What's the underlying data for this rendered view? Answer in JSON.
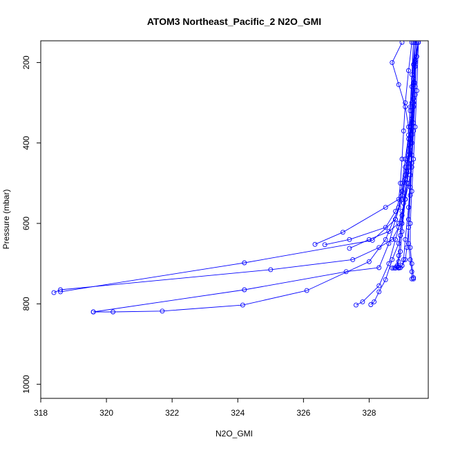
{
  "chart_data": {
    "type": "line",
    "title": "ATOM3 Northeast_Pacific_2 N2O_GMI",
    "xlabel": "N2O_GMI",
    "ylabel": "Pressure (mbar)",
    "xlim": [
      318.0,
      329.8
    ],
    "ylim": [
      1035,
      146
    ],
    "y_axis_reversed": true,
    "x_ticks": [
      318,
      320,
      322,
      324,
      326,
      328
    ],
    "y_ticks": [
      200,
      400,
      600,
      800,
      1000
    ],
    "grid": false,
    "legend": "none",
    "marker": "open-circle",
    "color": "#0000ff",
    "series": [
      {
        "x": [
          329.5,
          329.45,
          329.4,
          329.38,
          329.35,
          329.3,
          329.25,
          329.2,
          329.15,
          329.1,
          329.0,
          328.9,
          328.7,
          328.3,
          327.5,
          325.0,
          318.6,
          318.4
        ],
        "y": [
          150,
          185,
          210,
          250,
          300,
          350,
          400,
          450,
          500,
          540,
          580,
          610,
          640,
          660,
          690,
          715,
          765,
          772
        ]
      },
      {
        "x": [
          329.5,
          329.4,
          329.35,
          329.3,
          329.25,
          329.2,
          329.1,
          329.0,
          328.8,
          328.1,
          324.2,
          318.6
        ],
        "y": [
          150,
          195,
          250,
          310,
          360,
          420,
          480,
          530,
          590,
          642,
          698,
          770
        ]
      },
      {
        "x": [
          329.45,
          329.4,
          329.35,
          329.3,
          329.25,
          329.2,
          329.1,
          329.0,
          328.8,
          328.6,
          328.3,
          327.3,
          324.2,
          319.6
        ],
        "y": [
          150,
          200,
          255,
          310,
          370,
          430,
          490,
          540,
          590,
          650,
          710,
          720,
          765,
          820
        ]
      },
      {
        "x": [
          329.4,
          329.35,
          329.3,
          329.25,
          329.2,
          329.1,
          329.0,
          328.9,
          328.5,
          328.0,
          326.1,
          324.15,
          321.7,
          320.2,
          319.6
        ],
        "y": [
          150,
          205,
          260,
          320,
          380,
          440,
          500,
          560,
          640,
          695,
          767,
          803,
          818,
          820,
          820
        ]
      },
      {
        "x": [
          329.0,
          328.7,
          328.9,
          329.1,
          329.2,
          329.25,
          329.3,
          329.2,
          329.1,
          329.0,
          328.9,
          328.6,
          328.0,
          327.4
        ],
        "y": [
          150,
          200,
          255,
          310,
          360,
          410,
          460,
          500,
          540,
          570,
          600,
          620,
          640,
          662
        ]
      },
      {
        "x": [
          329.3,
          329.2,
          329.1,
          329.05,
          329.0,
          328.95,
          328.9,
          328.5,
          327.2,
          326.35
        ],
        "y": [
          150,
          220,
          300,
          370,
          440,
          500,
          540,
          560,
          622,
          652
        ]
      },
      {
        "x": [
          329.35,
          329.3,
          329.25,
          329.2,
          329.1,
          329.0,
          328.8,
          328.5,
          327.4,
          326.65
        ],
        "y": [
          150,
          230,
          310,
          390,
          460,
          520,
          570,
          610,
          640,
          653
        ]
      },
      {
        "x": [
          329.4,
          329.35,
          329.3,
          329.25,
          329.2,
          329.1,
          329.0,
          328.9,
          328.7,
          328.5,
          328.3,
          328.15,
          328.05
        ],
        "y": [
          150,
          240,
          320,
          400,
          470,
          540,
          600,
          650,
          690,
          740,
          770,
          795,
          802
        ]
      },
      {
        "x": [
          329.4,
          329.35,
          329.3,
          329.25,
          329.15,
          329.0,
          328.8,
          328.6,
          328.3,
          327.8,
          327.6
        ],
        "y": [
          150,
          250,
          340,
          420,
          500,
          580,
          640,
          700,
          755,
          795,
          803
        ]
      },
      {
        "x": [
          329.45,
          329.4,
          329.35,
          329.3,
          329.25,
          329.2,
          329.2,
          329.25,
          329.3,
          329.3
        ],
        "y": [
          150,
          260,
          350,
          430,
          510,
          590,
          650,
          690,
          720,
          738
        ]
      },
      {
        "x": [
          329.5,
          329.45,
          329.4,
          329.35,
          329.3,
          329.25,
          329.25,
          329.3,
          329.35,
          329.35
        ],
        "y": [
          150,
          270,
          360,
          440,
          520,
          600,
          660,
          700,
          735,
          738
        ]
      },
      {
        "x": [
          329.45,
          329.4,
          329.35,
          329.3,
          329.25,
          329.2,
          329.15,
          329.1,
          329.0,
          328.9,
          328.8,
          328.7
        ],
        "y": [
          150,
          280,
          370,
          450,
          530,
          610,
          660,
          690,
          705,
          710,
          711,
          711
        ]
      },
      {
        "x": [
          329.4,
          329.35,
          329.3,
          329.2,
          329.1,
          329.0,
          328.95,
          328.9,
          328.85,
          328.8,
          328.75
        ],
        "y": [
          150,
          290,
          380,
          460,
          540,
          620,
          670,
          695,
          708,
          711,
          711
        ]
      },
      {
        "x": [
          329.35,
          329.3,
          329.25,
          329.15,
          329.05,
          328.95,
          328.9,
          328.85,
          328.8
        ],
        "y": [
          150,
          300,
          390,
          470,
          550,
          630,
          680,
          705,
          711
        ]
      },
      {
        "x": [
          329.4,
          329.35,
          329.3,
          329.25,
          329.2,
          329.1,
          329.05,
          329.0,
          328.95,
          328.9
        ],
        "y": [
          150,
          310,
          400,
          480,
          560,
          640,
          690,
          705,
          710,
          711
        ]
      }
    ]
  }
}
